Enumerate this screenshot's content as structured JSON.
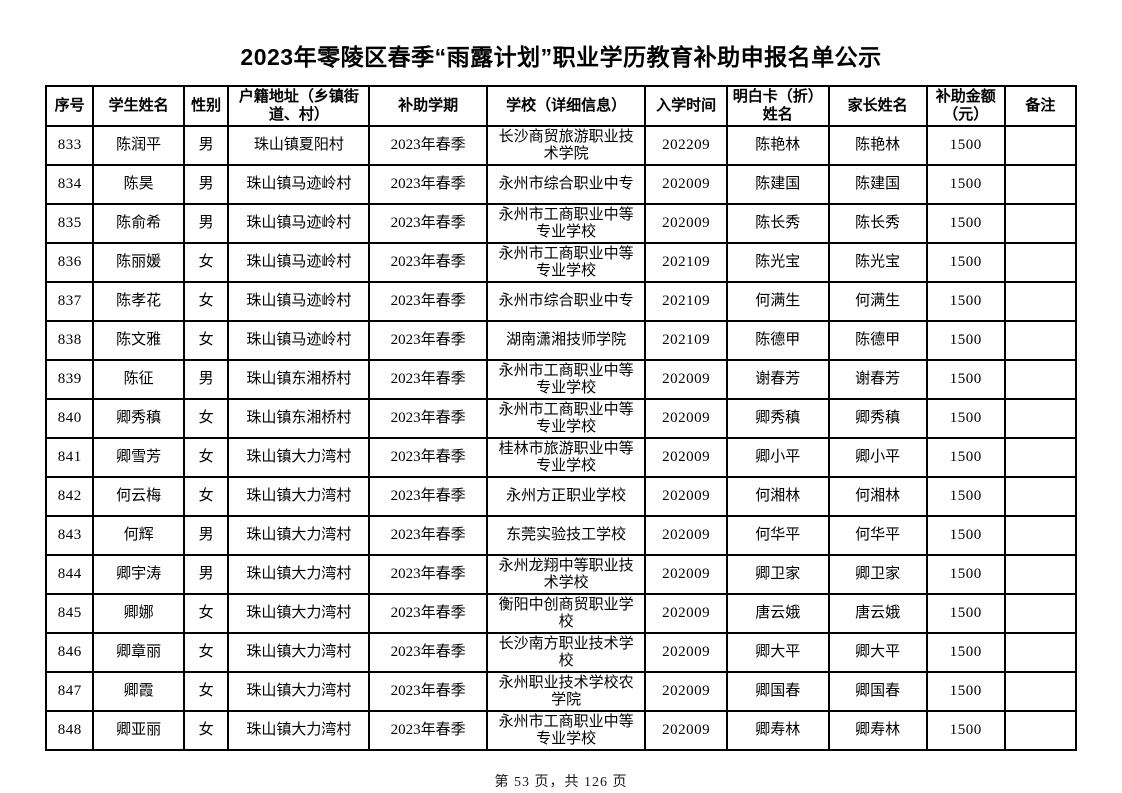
{
  "page": {
    "title": "2023年零陵区春季“雨露计划”职业学历教育补助申报名单公示",
    "footer": "第 53 页，共 126 页"
  },
  "table": {
    "columns": [
      {
        "key": "seq",
        "label": "序号",
        "width": "4.6%"
      },
      {
        "key": "student",
        "label": "学生姓名",
        "width": "8.8%"
      },
      {
        "key": "gender",
        "label": "性别",
        "width": "4.3%"
      },
      {
        "key": "address",
        "label": "户籍地址（乡镇街\n道、村）",
        "width": "13.7%"
      },
      {
        "key": "term",
        "label": "补助学期",
        "width": "11.4%"
      },
      {
        "key": "school",
        "label": "学校（详细信息）",
        "width": "15.4%"
      },
      {
        "key": "enroll",
        "label": "入学时间",
        "width": "7.9%"
      },
      {
        "key": "card",
        "label": "明白卡（折）\n姓名",
        "width": "9.9%"
      },
      {
        "key": "parent",
        "label": "家长姓名",
        "width": "9.5%"
      },
      {
        "key": "amount",
        "label": "补助金额\n（元）",
        "width": "7.6%"
      },
      {
        "key": "remark",
        "label": "备注",
        "width": "6.9%"
      }
    ],
    "rows": [
      [
        "833",
        "陈润平",
        "男",
        "珠山镇夏阳村",
        "2023年春季",
        "长沙商贸旅游职业技术学院",
        "202209",
        "陈艳林",
        "陈艳林",
        "1500",
        ""
      ],
      [
        "834",
        "陈昊",
        "男",
        "珠山镇马迹岭村",
        "2023年春季",
        "永州市综合职业中专",
        "202009",
        "陈建国",
        "陈建国",
        "1500",
        ""
      ],
      [
        "835",
        "陈俞希",
        "男",
        "珠山镇马迹岭村",
        "2023年春季",
        "永州市工商职业中等专业学校",
        "202009",
        "陈长秀",
        "陈长秀",
        "1500",
        ""
      ],
      [
        "836",
        "陈丽媛",
        "女",
        "珠山镇马迹岭村",
        "2023年春季",
        "永州市工商职业中等专业学校",
        "202109",
        "陈光宝",
        "陈光宝",
        "1500",
        ""
      ],
      [
        "837",
        "陈孝花",
        "女",
        "珠山镇马迹岭村",
        "2023年春季",
        "永州市综合职业中专",
        "202109",
        "何满生",
        "何满生",
        "1500",
        ""
      ],
      [
        "838",
        "陈文雅",
        "女",
        "珠山镇马迹岭村",
        "2023年春季",
        "湖南潇湘技师学院",
        "202109",
        "陈德甲",
        "陈德甲",
        "1500",
        ""
      ],
      [
        "839",
        "陈征",
        "男",
        "珠山镇东湘桥村",
        "2023年春季",
        "永州市工商职业中等专业学校",
        "202009",
        "谢春芳",
        "谢春芳",
        "1500",
        ""
      ],
      [
        "840",
        "卿秀稹",
        "女",
        "珠山镇东湘桥村",
        "2023年春季",
        "永州市工商职业中等专业学校",
        "202009",
        "卿秀稹",
        "卿秀稹",
        "1500",
        ""
      ],
      [
        "841",
        "卿雪芳",
        "女",
        "珠山镇大力湾村",
        "2023年春季",
        "桂林市旅游职业中等专业学校",
        "202009",
        "卿小平",
        "卿小平",
        "1500",
        ""
      ],
      [
        "842",
        "何云梅",
        "女",
        "珠山镇大力湾村",
        "2023年春季",
        "永州方正职业学校",
        "202009",
        "何湘林",
        "何湘林",
        "1500",
        ""
      ],
      [
        "843",
        "何辉",
        "男",
        "珠山镇大力湾村",
        "2023年春季",
        "东莞实验技工学校",
        "202009",
        "何华平",
        "何华平",
        "1500",
        ""
      ],
      [
        "844",
        "卿宇涛",
        "男",
        "珠山镇大力湾村",
        "2023年春季",
        "永州龙翔中等职业技术学校",
        "202009",
        "卿卫家",
        "卿卫家",
        "1500",
        ""
      ],
      [
        "845",
        "卿娜",
        "女",
        "珠山镇大力湾村",
        "2023年春季",
        "衡阳中创商贸职业学校",
        "202009",
        "唐云娥",
        "唐云娥",
        "1500",
        ""
      ],
      [
        "846",
        "卿章丽",
        "女",
        "珠山镇大力湾村",
        "2023年春季",
        "长沙南方职业技术学校",
        "202009",
        "卿大平",
        "卿大平",
        "1500",
        ""
      ],
      [
        "847",
        "卿霞",
        "女",
        "珠山镇大力湾村",
        "2023年春季",
        "永州职业技术学校农学院",
        "202009",
        "卿国春",
        "卿国春",
        "1500",
        ""
      ],
      [
        "848",
        "卿亚丽",
        "女",
        "珠山镇大力湾村",
        "2023年春季",
        "永州市工商职业中等专业学校",
        "202009",
        "卿寿林",
        "卿寿林",
        "1500",
        ""
      ]
    ]
  }
}
